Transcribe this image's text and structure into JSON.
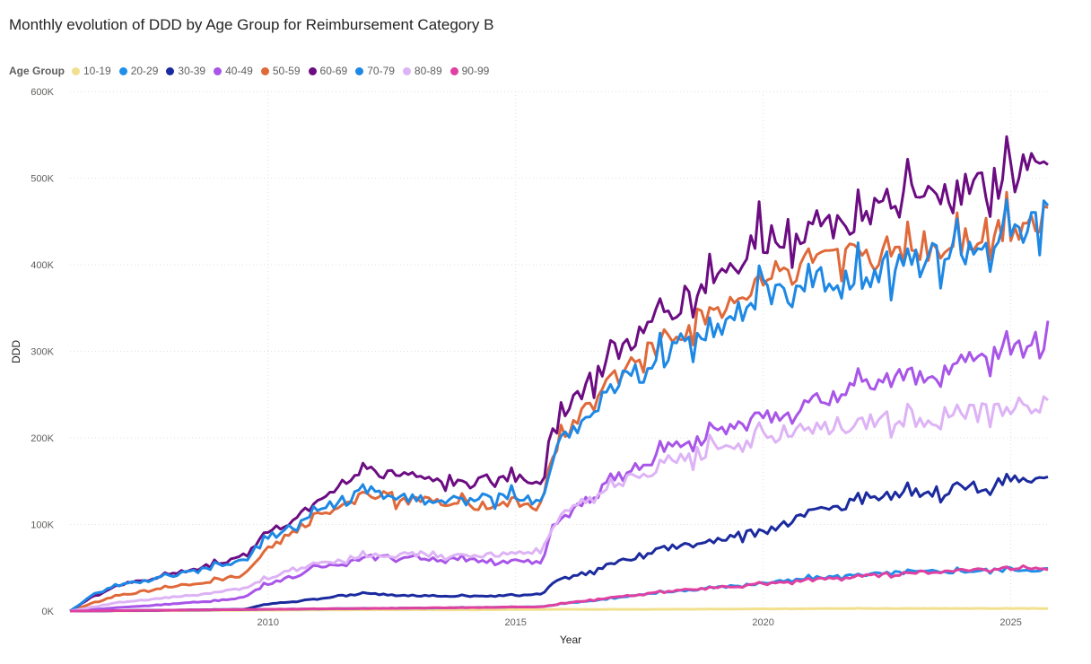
{
  "chart_data": {
    "type": "line",
    "title": "Monthly evolution of DDD by Age Group for Reimbursement Category B",
    "xlabel": "Year",
    "ylabel": "DDD",
    "xlim": [
      2006.0,
      2025.75
    ],
    "ylim": [
      0,
      600000
    ],
    "grid": true,
    "legend_position": "top-left",
    "legend_title": "Age Group",
    "x_ticks": [
      {
        "value": 2010,
        "label": "2010"
      },
      {
        "value": 2015,
        "label": "2015"
      },
      {
        "value": 2020,
        "label": "2020"
      },
      {
        "value": 2025,
        "label": "2025"
      }
    ],
    "y_ticks": [
      {
        "value": 0,
        "label": "0K"
      },
      {
        "value": 100000,
        "label": "100K"
      },
      {
        "value": 200000,
        "label": "200K"
      },
      {
        "value": 300000,
        "label": "300K"
      },
      {
        "value": 400000,
        "label": "400K"
      },
      {
        "value": 500000,
        "label": "500K"
      },
      {
        "value": 600000,
        "label": "600K"
      }
    ],
    "series": [
      {
        "name": "10-19",
        "color": "#F2E08F",
        "x": [
          2006,
          2008,
          2010,
          2012,
          2014,
          2016,
          2018,
          2020,
          2022,
          2024,
          2025.75
        ],
        "values": [
          0,
          500,
          1000,
          1500,
          1500,
          2000,
          2000,
          2500,
          3000,
          3000,
          3000
        ]
      },
      {
        "name": "20-29",
        "color": "#1F8FEA",
        "x": [
          2006,
          2008,
          2010,
          2012,
          2014,
          2015.5,
          2016,
          2017,
          2018,
          2019,
          2020,
          2021,
          2022,
          2023,
          2024,
          2025,
          2025.75
        ],
        "values": [
          0,
          1000,
          2000,
          3000,
          4000,
          5000,
          9000,
          15000,
          22000,
          27000,
          32000,
          38000,
          42000,
          45000,
          46000,
          48000,
          48000
        ]
      },
      {
        "name": "30-39",
        "color": "#1B2A9E",
        "x": [
          2006,
          2008,
          2009.5,
          2010,
          2011,
          2011.5,
          2012,
          2013,
          2014,
          2015,
          2015.5,
          2015.75,
          2016,
          2016.5,
          2017,
          2018,
          2019,
          2020,
          2021,
          2022,
          2023,
          2024,
          2025,
          2025.75
        ],
        "values": [
          0,
          1000,
          2000,
          8000,
          14000,
          18000,
          20000,
          18000,
          17000,
          18000,
          20000,
          32000,
          38000,
          45000,
          55000,
          72000,
          82000,
          92000,
          112000,
          130000,
          135000,
          142000,
          148000,
          157000
        ]
      },
      {
        "name": "40-49",
        "color": "#A855E8",
        "x": [
          2006,
          2007,
          2008,
          2009,
          2009.5,
          2010,
          2010.5,
          2011,
          2012,
          2013,
          2014,
          2015,
          2015.5,
          2015.75,
          2016,
          2017,
          2018,
          2019,
          2020,
          2021,
          2022,
          2023,
          2024,
          2025,
          2025.75
        ],
        "values": [
          0,
          4000,
          8000,
          12000,
          16000,
          32000,
          40000,
          50000,
          62000,
          62000,
          58000,
          58000,
          55000,
          95000,
          110000,
          150000,
          185000,
          205000,
          225000,
          240000,
          258000,
          270000,
          285000,
          300000,
          320000
        ]
      },
      {
        "name": "50-59",
        "color": "#E0693A",
        "x": [
          2006,
          2006.5,
          2007,
          2008,
          2009,
          2009.5,
          2010,
          2010.5,
          2011,
          2011.5,
          2012,
          2013,
          2014,
          2015,
          2015.5,
          2015.75,
          2016,
          2016.5,
          2017,
          2018,
          2019,
          2020,
          2021,
          2022,
          2023,
          2024,
          2025,
          2025.75
        ],
        "values": [
          0,
          10000,
          18000,
          28000,
          36000,
          42000,
          72000,
          90000,
          110000,
          125000,
          135000,
          128000,
          122000,
          126000,
          120000,
          180000,
          205000,
          240000,
          270000,
          310000,
          345000,
          385000,
          395000,
          410000,
          420000,
          430000,
          445000,
          462000
        ]
      },
      {
        "name": "60-69",
        "color": "#6C0C82",
        "x": [
          2006,
          2006.5,
          2007,
          2008,
          2009,
          2009.5,
          2010,
          2010.5,
          2011,
          2011.5,
          2012,
          2013,
          2014,
          2015,
          2015.5,
          2015.75,
          2016,
          2016.5,
          2017,
          2018,
          2019,
          2020,
          2021,
          2022,
          2023,
          2024,
          2025,
          2025.75
        ],
        "values": [
          0,
          18000,
          30000,
          42000,
          55000,
          65000,
          90000,
          105000,
          125000,
          150000,
          165000,
          155000,
          148000,
          155000,
          150000,
          205000,
          235000,
          265000,
          295000,
          345000,
          385000,
          430000,
          445000,
          462000,
          472000,
          482000,
          500000,
          532000
        ]
      },
      {
        "name": "70-79",
        "color": "#1E88E5",
        "x": [
          2006,
          2006.5,
          2007,
          2008,
          2009,
          2009.5,
          2010,
          2010.5,
          2011,
          2011.5,
          2012,
          2013,
          2014,
          2015,
          2015.5,
          2015.75,
          2016,
          2016.5,
          2017,
          2018,
          2019,
          2020,
          2021,
          2022,
          2023,
          2024,
          2025,
          2025.75
        ],
        "values": [
          0,
          20000,
          30000,
          40000,
          52000,
          58000,
          85000,
          98000,
          115000,
          128000,
          138000,
          130000,
          128000,
          132000,
          125000,
          178000,
          200000,
          230000,
          260000,
          295000,
          330000,
          365000,
          378000,
          392000,
          402000,
          415000,
          430000,
          455000
        ]
      },
      {
        "name": "80-89",
        "color": "#DDB3F5",
        "x": [
          2006,
          2007,
          2008,
          2009,
          2009.5,
          2010,
          2010.5,
          2011,
          2012,
          2013,
          2014,
          2015,
          2015.5,
          2015.75,
          2016,
          2017,
          2018,
          2019,
          2020,
          2021,
          2022,
          2023,
          2024,
          2025,
          2025.75
        ],
        "values": [
          0,
          10000,
          16000,
          22000,
          26000,
          38000,
          48000,
          55000,
          64000,
          66000,
          64000,
          66000,
          70000,
          95000,
          115000,
          145000,
          170000,
          188000,
          200000,
          210000,
          218000,
          222000,
          226000,
          232000,
          246000
        ]
      },
      {
        "name": "90-99",
        "color": "#E040A0",
        "x": [
          2006,
          2008,
          2010,
          2012,
          2014,
          2015.5,
          2016,
          2017,
          2018,
          2019,
          2020,
          2021,
          2022,
          2023,
          2024,
          2025,
          2025.75
        ],
        "values": [
          0,
          1000,
          2000,
          3000,
          4000,
          5000,
          9000,
          16000,
          22000,
          27000,
          31000,
          36000,
          40000,
          44000,
          47000,
          50000,
          50000
        ]
      }
    ]
  }
}
